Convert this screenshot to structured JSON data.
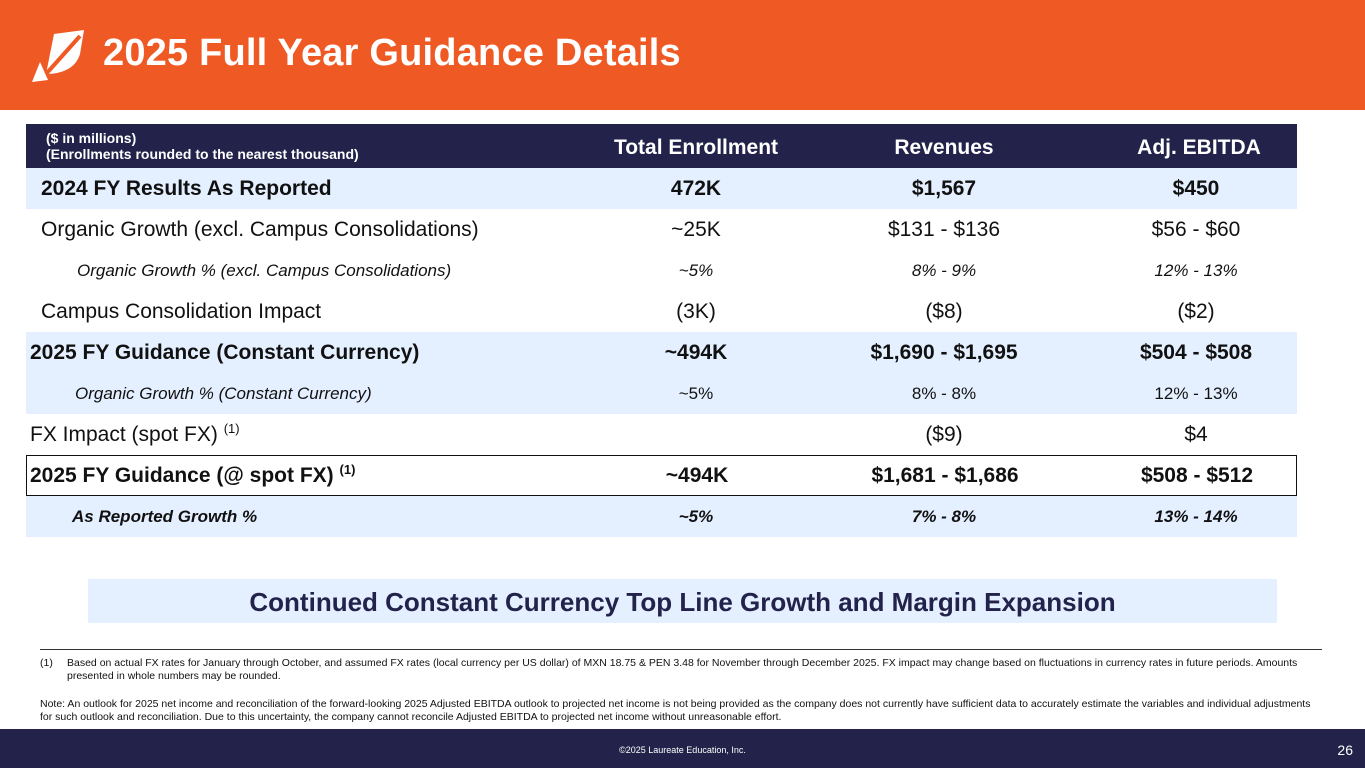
{
  "header": {
    "title": "2025 Full Year Guidance Details",
    "logo_icon": "leaf-logo-icon"
  },
  "table": {
    "note_line1": "($ in millions)",
    "note_line2": "(Enrollments rounded to the nearest thousand)",
    "columns": [
      "Total Enrollment",
      "Revenues",
      "Adj. EBITDA"
    ],
    "rows": [
      {
        "label": "2024 FY Results As Reported",
        "values": [
          "472K",
          "$1,567",
          "$450"
        ]
      },
      {
        "label": "Organic Growth (excl. Campus Consolidations)",
        "values": [
          "~25K",
          "$131 - $136",
          "$56 - $60"
        ]
      },
      {
        "label": "Organic Growth % (excl. Campus Consolidations)",
        "values": [
          "~5%",
          "8% - 9%",
          "12% - 13%"
        ]
      },
      {
        "label": "Campus Consolidation Impact",
        "values": [
          "(3K)",
          "($8)",
          "($2)"
        ]
      },
      {
        "label": "2025 FY Guidance (Constant Currency)",
        "values": [
          "~494K",
          "$1,690 - $1,695",
          "$504 - $508"
        ]
      },
      {
        "label": "Organic Growth % (Constant Currency)",
        "values": [
          "~5%",
          "8% - 8%",
          "12% - 13%"
        ]
      },
      {
        "label": "FX Impact (spot FX)",
        "sup": "(1)",
        "values": [
          "",
          "($9)",
          "$4"
        ]
      },
      {
        "label": "2025 FY Guidance (@ spot FX)",
        "sup": "(1)",
        "values": [
          "~494K",
          "$1,681 - $1,686",
          "$508 - $512"
        ]
      },
      {
        "label": "As Reported Growth %",
        "values": [
          "~5%",
          "7% - 8%",
          "13% - 14%"
        ]
      }
    ]
  },
  "banner": "Continued Constant Currency Top Line Growth and Margin Expansion",
  "footnotes": {
    "fn1_num": "(1)",
    "fn1_text": "Based on actual FX rates for January through October, and assumed FX rates (local currency per US dollar) of MXN 18.75 & PEN 3.48 for November through December 2025. FX impact may change based on fluctuations in currency rates in future periods. Amounts presented in whole numbers may be rounded.",
    "note": "Note: An outlook for 2025 net income and reconciliation of the forward-looking 2025 Adjusted EBITDA outlook to projected net income is not being provided as the company does not currently have sufficient data to accurately estimate the variables and individual adjustments for such outlook and reconciliation.  Due to this uncertainty, the company cannot reconcile Adjusted EBITDA to projected net income without unreasonable effort."
  },
  "footer": {
    "copyright": "©2025 Laureate Education, Inc.",
    "page_number": "26"
  },
  "colors": {
    "brand_orange": "#ef5a24",
    "navy": "#22224a",
    "light_blue": "#e4efff"
  }
}
